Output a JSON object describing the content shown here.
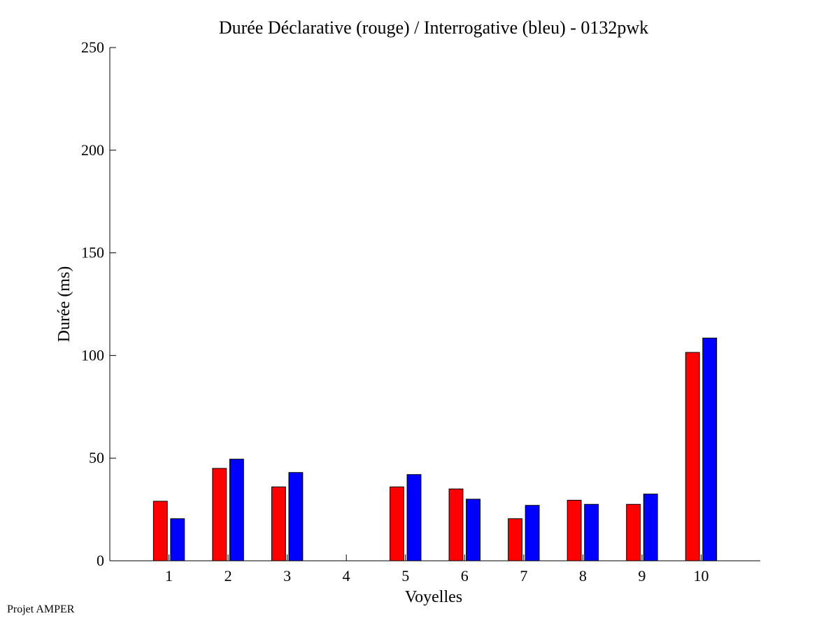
{
  "footer": "Projet AMPER",
  "colors": {
    "red": "#ff0000",
    "blue": "#0000ff"
  },
  "chart_data": {
    "type": "bar",
    "title": "Durée Déclarative (rouge) / Interrogative (bleu) - 0132pwk",
    "xlabel": "Voyelles",
    "ylabel": "Durée (ms)",
    "categories": [
      "1",
      "2",
      "3",
      "4",
      "5",
      "6",
      "7",
      "8",
      "9",
      "10"
    ],
    "yticks": [
      "0",
      "50",
      "100",
      "150",
      "200",
      "250"
    ],
    "ylim": [
      0,
      250
    ],
    "xlim": [
      0,
      11
    ],
    "grid": false,
    "series": [
      {
        "color": "#ff0000",
        "values": [
          29,
          45,
          36,
          null,
          36,
          35,
          20.5,
          29.5,
          27.5,
          101.5
        ]
      },
      {
        "color": "#0000ff",
        "values": [
          20.5,
          49.5,
          43,
          null,
          42,
          30,
          27,
          27.5,
          32.5,
          108.5
        ]
      }
    ]
  }
}
